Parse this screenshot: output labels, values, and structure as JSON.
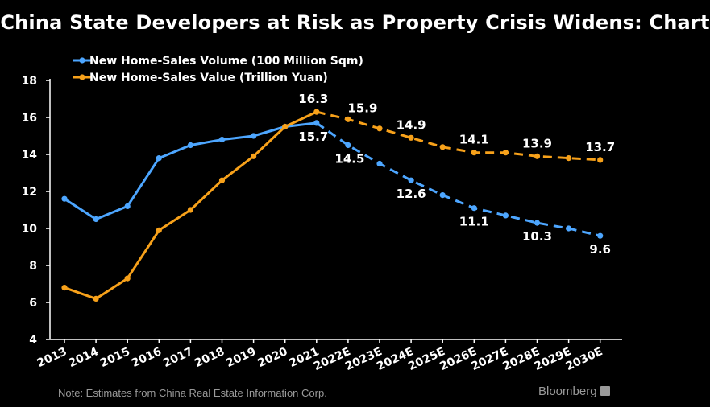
{
  "title": "China State Developers at Risk as Property Crisis Widens: Chart",
  "note": "Note: Estimates from China Real Estate Information Corp.",
  "source": "Bloomberg",
  "colors": {
    "volume": "#4da6ff",
    "value": "#f7a11a",
    "axis": "#ffffff",
    "background": "#000000"
  },
  "chart_data": {
    "type": "line",
    "categories": [
      "2013",
      "2014",
      "2015",
      "2016",
      "2017",
      "2018",
      "2019",
      "2020",
      "2021",
      "2022E",
      "2023E",
      "2024E",
      "2025E",
      "2026E",
      "2027E",
      "2028E",
      "2029E",
      "2030E"
    ],
    "actual_end_index": 8,
    "ylim": [
      4,
      18
    ],
    "yticks": [
      4,
      6,
      8,
      10,
      12,
      14,
      16,
      18
    ],
    "grid": false,
    "series": [
      {
        "name": "New Home-Sales Volume (100 Million Sqm)",
        "color": "#4da6ff",
        "values": [
          11.6,
          10.5,
          11.2,
          13.8,
          14.5,
          14.8,
          15.0,
          15.5,
          15.7,
          14.5,
          13.5,
          12.6,
          11.8,
          11.1,
          10.7,
          10.3,
          10.0,
          9.6
        ]
      },
      {
        "name": "New Home-Sales Value (Trillion Yuan)",
        "color": "#f7a11a",
        "values": [
          6.8,
          6.2,
          7.3,
          9.9,
          11.0,
          12.6,
          13.9,
          15.5,
          16.3,
          15.9,
          15.4,
          14.9,
          14.4,
          14.1,
          14.1,
          13.9,
          13.8,
          13.7
        ]
      }
    ],
    "data_labels": [
      {
        "series": 1,
        "index": 8,
        "text": "16.3"
      },
      {
        "series": 1,
        "index": 9,
        "text": "15.9"
      },
      {
        "series": 1,
        "index": 11,
        "text": "14.9"
      },
      {
        "series": 1,
        "index": 13,
        "text": "14.1"
      },
      {
        "series": 1,
        "index": 15,
        "text": "13.9"
      },
      {
        "series": 1,
        "index": 17,
        "text": "13.7"
      },
      {
        "series": 0,
        "index": 8,
        "text": "15.7"
      },
      {
        "series": 0,
        "index": 9,
        "text": "14.5"
      },
      {
        "series": 0,
        "index": 11,
        "text": "12.6"
      },
      {
        "series": 0,
        "index": 13,
        "text": "11.1"
      },
      {
        "series": 0,
        "index": 15,
        "text": "10.3"
      },
      {
        "series": 0,
        "index": 17,
        "text": "9.6"
      }
    ]
  }
}
